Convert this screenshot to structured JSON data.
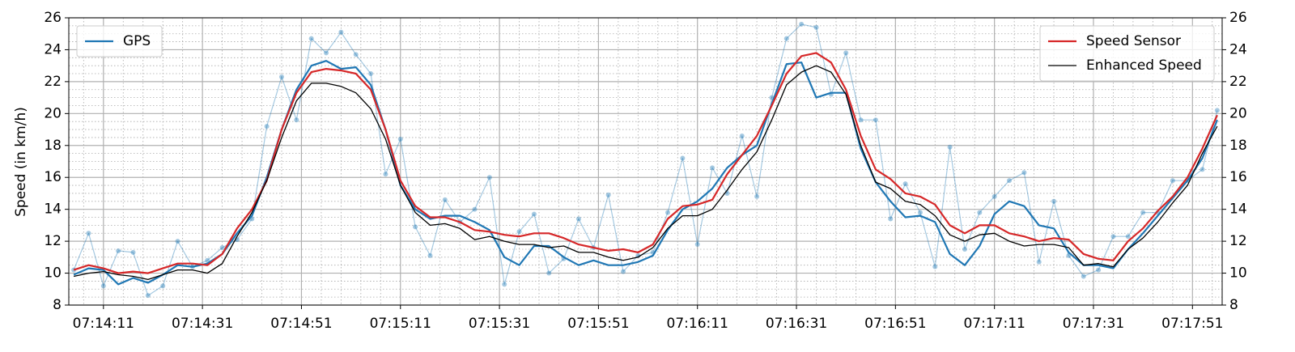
{
  "chart_data": {
    "type": "line",
    "ylabel": "Speed (in km/h)",
    "x": [
      "07:14:05",
      "07:14:08",
      "07:14:11",
      "07:14:14",
      "07:14:17",
      "07:14:20",
      "07:14:23",
      "07:14:26",
      "07:14:29",
      "07:14:32",
      "07:14:35",
      "07:14:38",
      "07:14:41",
      "07:14:44",
      "07:14:47",
      "07:14:50",
      "07:14:53",
      "07:14:56",
      "07:14:59",
      "07:15:02",
      "07:15:05",
      "07:15:08",
      "07:15:11",
      "07:15:14",
      "07:15:17",
      "07:15:20",
      "07:15:23",
      "07:15:26",
      "07:15:29",
      "07:15:32",
      "07:15:35",
      "07:15:38",
      "07:15:41",
      "07:15:44",
      "07:15:47",
      "07:15:50",
      "07:15:53",
      "07:15:56",
      "07:15:59",
      "07:16:02",
      "07:16:05",
      "07:16:08",
      "07:16:11",
      "07:16:14",
      "07:16:17",
      "07:16:20",
      "07:16:23",
      "07:16:26",
      "07:16:29",
      "07:16:32",
      "07:16:35",
      "07:16:38",
      "07:16:41",
      "07:16:44",
      "07:16:47",
      "07:16:50",
      "07:16:53",
      "07:16:56",
      "07:16:59",
      "07:17:02",
      "07:17:05",
      "07:17:08",
      "07:17:11",
      "07:17:14",
      "07:17:17",
      "07:17:20",
      "07:17:23",
      "07:17:26",
      "07:17:29",
      "07:17:32",
      "07:17:35",
      "07:17:38",
      "07:17:41",
      "07:17:44",
      "07:17:47",
      "07:17:50",
      "07:17:53",
      "07:17:56"
    ],
    "series": [
      {
        "color": "#1f77b4",
        "markers": true,
        "alpha": 0.4,
        "values": [
          10.2,
          12.5,
          9.2,
          11.4,
          11.3,
          8.6,
          9.2,
          12.0,
          10.4,
          10.8,
          11.6,
          12.1,
          13.4,
          19.2,
          22.3,
          19.6,
          24.7,
          23.8,
          25.1,
          23.7,
          22.5,
          16.2,
          18.4,
          12.9,
          11.1,
          14.6,
          13.2,
          14.0,
          16.0,
          9.3,
          12.6,
          13.7,
          10.0,
          10.9,
          13.4,
          11.6,
          14.9,
          10.1,
          11.1,
          11.3,
          13.8,
          17.2,
          11.8,
          16.6,
          15.0,
          18.6,
          14.8,
          21.0,
          24.7,
          25.6,
          25.4,
          21.2,
          23.8,
          19.6,
          19.6,
          13.4,
          15.6,
          13.8,
          10.4,
          17.9,
          11.5,
          13.8,
          14.8,
          15.8,
          16.3,
          10.7,
          14.5,
          11.1,
          9.8,
          10.2,
          12.3,
          12.3,
          13.8,
          13.8,
          15.8,
          15.8,
          16.5,
          20.2
        ]
      },
      {
        "name": "GPS",
        "color": "#1f77b4",
        "width": 2.2,
        "legend": "upper left",
        "values": [
          9.9,
          10.3,
          10.2,
          9.3,
          9.7,
          9.4,
          9.9,
          10.5,
          10.4,
          10.6,
          11.2,
          12.5,
          13.6,
          16.0,
          19.0,
          21.5,
          23.0,
          23.3,
          22.8,
          22.9,
          21.8,
          19.0,
          15.5,
          14.0,
          13.4,
          13.6,
          13.6,
          13.2,
          12.7,
          11.0,
          10.5,
          11.7,
          11.7,
          11.0,
          10.5,
          10.8,
          10.5,
          10.5,
          10.7,
          11.1,
          12.7,
          14.0,
          14.5,
          15.3,
          16.6,
          17.4,
          18.0,
          20.6,
          23.1,
          23.2,
          21.0,
          21.3,
          21.3,
          17.8,
          15.7,
          14.5,
          13.5,
          13.6,
          13.2,
          11.2,
          10.5,
          11.7,
          13.7,
          14.5,
          14.2,
          13.0,
          12.8,
          11.3,
          10.5,
          10.5,
          10.3,
          11.5,
          12.5,
          13.6,
          14.7,
          15.8,
          17.2,
          19.6
        ]
      },
      {
        "name": "Speed Sensor",
        "color": "#d62728",
        "width": 2.2,
        "legend": "upper right",
        "values": [
          10.2,
          10.5,
          10.3,
          10.0,
          10.1,
          10.0,
          10.3,
          10.6,
          10.6,
          10.5,
          11.2,
          12.8,
          14.0,
          15.8,
          19.0,
          21.3,
          22.6,
          22.8,
          22.7,
          22.5,
          21.5,
          19.0,
          15.8,
          14.2,
          13.5,
          13.5,
          13.2,
          12.7,
          12.6,
          12.4,
          12.3,
          12.5,
          12.5,
          12.2,
          11.8,
          11.6,
          11.4,
          11.5,
          11.3,
          11.8,
          13.4,
          14.2,
          14.3,
          14.6,
          16.2,
          17.4,
          18.6,
          20.5,
          22.5,
          23.6,
          23.8,
          23.2,
          21.5,
          18.6,
          16.5,
          15.9,
          15.0,
          14.8,
          14.3,
          13.0,
          12.5,
          13.0,
          13.0,
          12.5,
          12.3,
          12.0,
          12.2,
          12.1,
          11.2,
          10.9,
          10.8,
          12.0,
          12.8,
          13.9,
          14.8,
          16.0,
          17.8,
          19.9
        ]
      },
      {
        "name": "Enhanced Speed",
        "color": "#000000",
        "width": 1.3,
        "legend": "upper right",
        "values": [
          9.8,
          10.0,
          10.1,
          9.9,
          9.8,
          9.6,
          9.9,
          10.2,
          10.2,
          10.0,
          10.6,
          12.3,
          13.8,
          15.8,
          18.5,
          20.8,
          21.9,
          21.9,
          21.7,
          21.3,
          20.3,
          18.4,
          15.5,
          13.8,
          13.0,
          13.1,
          12.8,
          12.1,
          12.3,
          12.0,
          11.8,
          11.8,
          11.6,
          11.7,
          11.3,
          11.3,
          11.0,
          10.8,
          11.0,
          11.6,
          12.8,
          13.6,
          13.6,
          14.0,
          15.2,
          16.5,
          17.6,
          19.6,
          21.8,
          22.6,
          23.0,
          22.6,
          21.2,
          18.0,
          15.7,
          15.3,
          14.5,
          14.3,
          13.6,
          12.4,
          12.0,
          12.4,
          12.5,
          12.0,
          11.7,
          11.8,
          11.8,
          11.6,
          10.5,
          10.6,
          10.4,
          11.5,
          12.2,
          13.2,
          14.4,
          15.5,
          17.5,
          19.2
        ]
      }
    ],
    "xlim": [
      "07:14:04",
      "07:17:57"
    ],
    "xticks": [
      "07:14:11",
      "07:14:31",
      "07:14:51",
      "07:15:11",
      "07:15:31",
      "07:15:51",
      "07:16:11",
      "07:16:31",
      "07:16:51",
      "07:17:11",
      "07:17:31",
      "07:17:51"
    ],
    "ylim": [
      8,
      26
    ],
    "yticks": [
      8,
      10,
      12,
      14,
      16,
      18,
      20,
      22,
      24,
      26
    ],
    "grid": true,
    "minor_grid": true,
    "right_axis": true
  }
}
